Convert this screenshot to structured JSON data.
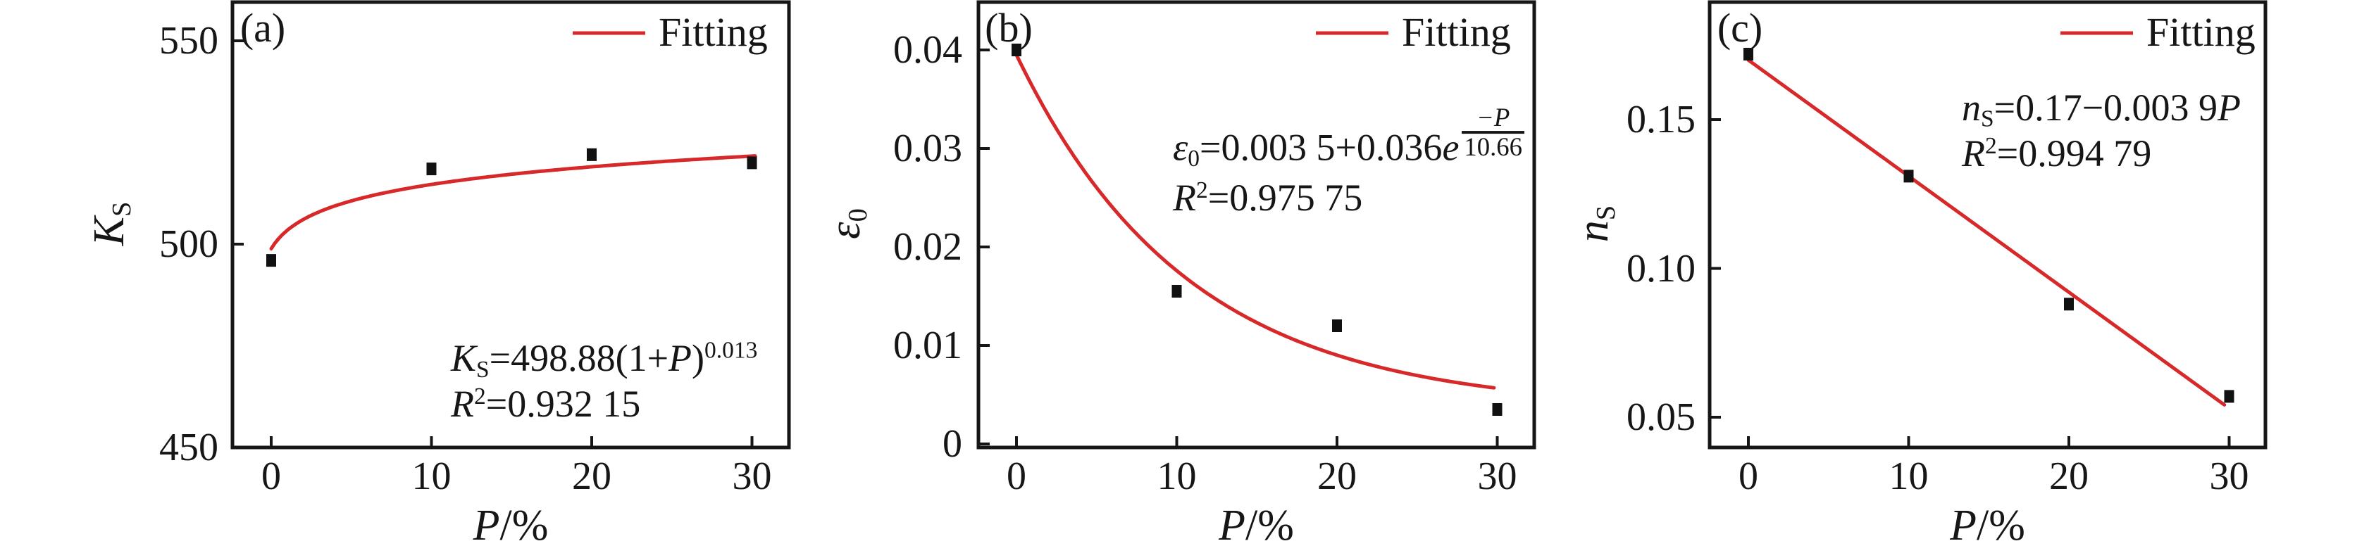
{
  "figure": {
    "background": "#ffffff",
    "ink": "#161616",
    "red": "#d7282a"
  },
  "legend_label": "Fitting",
  "xlabel": {
    "i": "P",
    "n": "/%"
  },
  "x_ticks": [
    "0",
    "10",
    "20",
    "30"
  ],
  "panels": [
    {
      "letter": "(a)",
      "ylabel": {
        "i": "K",
        "sub": "S"
      },
      "y_ticks": [
        "450",
        "500",
        "550"
      ],
      "equation": [
        [
          {
            "i": "K"
          },
          {
            "sub": "S"
          },
          {
            "n": "=498.88(1+"
          },
          {
            "i": "P"
          },
          {
            "n": ")"
          },
          {
            "sup": "0.013"
          }
        ],
        [
          {
            "i": "R"
          },
          {
            "sup": "2"
          },
          {
            "n": "=0.932 15"
          }
        ]
      ]
    },
    {
      "letter": "(b)",
      "ylabel": {
        "i": "ε",
        "sub": "0"
      },
      "y_ticks": [
        "0",
        "0.01",
        "0.02",
        "0.03",
        "0.04"
      ],
      "equation": [
        [
          {
            "i": "ε"
          },
          {
            "sub": "0"
          },
          {
            "n": "=0.003 5+0.036"
          },
          {
            "i": "e"
          },
          {
            "frac": [
              "−P",
              "10.66"
            ]
          }
        ],
        [
          {
            "i": "R"
          },
          {
            "sup": "2"
          },
          {
            "n": "=0.975 75"
          }
        ]
      ]
    },
    {
      "letter": "(c)",
      "ylabel": {
        "i": "n",
        "sub": "S"
      },
      "y_ticks": [
        "0.05",
        "0.10",
        "0.15"
      ],
      "equation": [
        [
          {
            "i": "n"
          },
          {
            "sub": "S"
          },
          {
            "n": "=0.17−0.003 9"
          },
          {
            "i": "P"
          }
        ],
        [
          {
            "i": "R"
          },
          {
            "sup": "2"
          },
          {
            "n": "=0.994 79"
          }
        ]
      ]
    }
  ],
  "chart_data": [
    {
      "type": "scatter",
      "title": "(a)",
      "xlabel": "P/%",
      "ylabel": "K_S",
      "x": [
        0,
        10,
        20,
        30
      ],
      "y": [
        496,
        518.5,
        522,
        520
      ],
      "fit": {
        "label": "Fitting",
        "type": "power",
        "expr": "K_S=498.88(1+P)^0.013",
        "a": 498.88,
        "b": 0.013,
        "r2": "0.932 15",
        "domain": [
          0,
          30.2
        ]
      },
      "xlim": [
        -2.4,
        32.4
      ],
      "ylim": [
        450,
        559.5
      ],
      "xticks": [
        0,
        10,
        20,
        30
      ],
      "yticks": [
        450,
        500,
        550
      ],
      "grid": false,
      "legend_position": "top-right",
      "marker": "black-square",
      "line_color": "#d7282a"
    },
    {
      "type": "scatter",
      "title": "(b)",
      "xlabel": "P/%",
      "ylabel": "ε_0",
      "x": [
        0,
        10,
        20,
        30
      ],
      "y": [
        0.04,
        0.0155,
        0.012,
        0.0035
      ],
      "fit": {
        "label": "Fitting",
        "type": "exp",
        "expr": "ε_0=0.003 5+0.036e^(−P/10.66)",
        "c": 0.0035,
        "a": 0.036,
        "tau": 10.66,
        "r2": "0.975 75",
        "domain": [
          0,
          29.8
        ]
      },
      "xlim": [
        -2.4,
        32.4
      ],
      "ylim": [
        0,
        0.0449
      ],
      "xticks": [
        0,
        10,
        20,
        30
      ],
      "yticks": [
        0,
        0.01,
        0.02,
        0.03,
        0.04
      ],
      "grid": false,
      "legend_position": "top-right",
      "marker": "black-square",
      "line_color": "#d7282a"
    },
    {
      "type": "scatter",
      "title": "(c)",
      "xlabel": "P/%",
      "ylabel": "n_S",
      "x": [
        0,
        10,
        20,
        30
      ],
      "y": [
        0.172,
        0.131,
        0.088,
        0.057
      ],
      "fit": {
        "label": "Fitting",
        "type": "linear",
        "expr": "n_S=0.17−0.003 9P",
        "a": 0.17,
        "b": -0.0039,
        "r2": "0.994 79",
        "domain": [
          0,
          29.7
        ]
      },
      "xlim": [
        -2.4,
        32.4
      ],
      "ylim": [
        0.0398,
        0.1895
      ],
      "xticks": [
        0,
        10,
        20,
        30
      ],
      "yticks": [
        0.05,
        0.1,
        0.15
      ],
      "grid": false,
      "legend_position": "top-right",
      "marker": "black-square",
      "line_color": "#d7282a"
    }
  ]
}
